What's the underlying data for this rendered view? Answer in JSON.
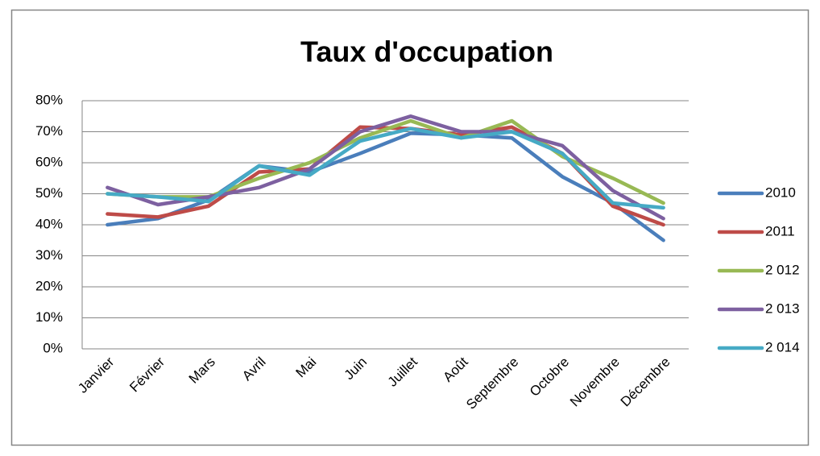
{
  "chart_data": {
    "type": "line",
    "title": "Taux d'occupation",
    "categories": [
      "Janvier",
      "Février",
      "Mars",
      "Avril",
      "Mai",
      "Juin",
      "Juillet",
      "Août",
      "Septembre",
      "Octobre",
      "Novembre",
      "Décembre"
    ],
    "series": [
      {
        "name": "2010",
        "color": "#4a7ebb",
        "values": [
          40,
          42,
          48,
          59,
          57,
          63,
          69.5,
          69,
          68,
          55.5,
          47,
          35
        ]
      },
      {
        "name": "2011",
        "color": "#be4b48",
        "values": [
          43.5,
          42.5,
          46,
          57,
          58,
          71.5,
          71,
          69,
          71.5,
          63,
          46,
          40
        ]
      },
      {
        "name": "2 012",
        "color": "#98b954",
        "values": [
          50,
          49,
          49,
          55,
          60,
          68,
          73.5,
          68,
          73.5,
          62,
          55,
          47
        ]
      },
      {
        "name": "2 013",
        "color": "#7d60a0",
        "values": [
          52,
          46.5,
          49,
          52,
          58,
          70,
          75,
          70,
          70,
          65.5,
          51,
          42
        ]
      },
      {
        "name": "2 014",
        "color": "#46aac5",
        "values": [
          50,
          49,
          47.5,
          59,
          56,
          67,
          71,
          68,
          70,
          63,
          47,
          45.5
        ]
      }
    ],
    "ylim": [
      0,
      80
    ],
    "yticks": [
      {
        "value": 0,
        "label": "0%"
      },
      {
        "value": 10,
        "label": "10%"
      },
      {
        "value": 20,
        "label": "20%"
      },
      {
        "value": 30,
        "label": "30%"
      },
      {
        "value": 40,
        "label": "40%"
      },
      {
        "value": 50,
        "label": "50%"
      },
      {
        "value": 60,
        "label": "60%"
      },
      {
        "value": 70,
        "label": "70%"
      },
      {
        "value": 80,
        "label": "80%"
      }
    ],
    "grid": true,
    "legend": "right"
  }
}
